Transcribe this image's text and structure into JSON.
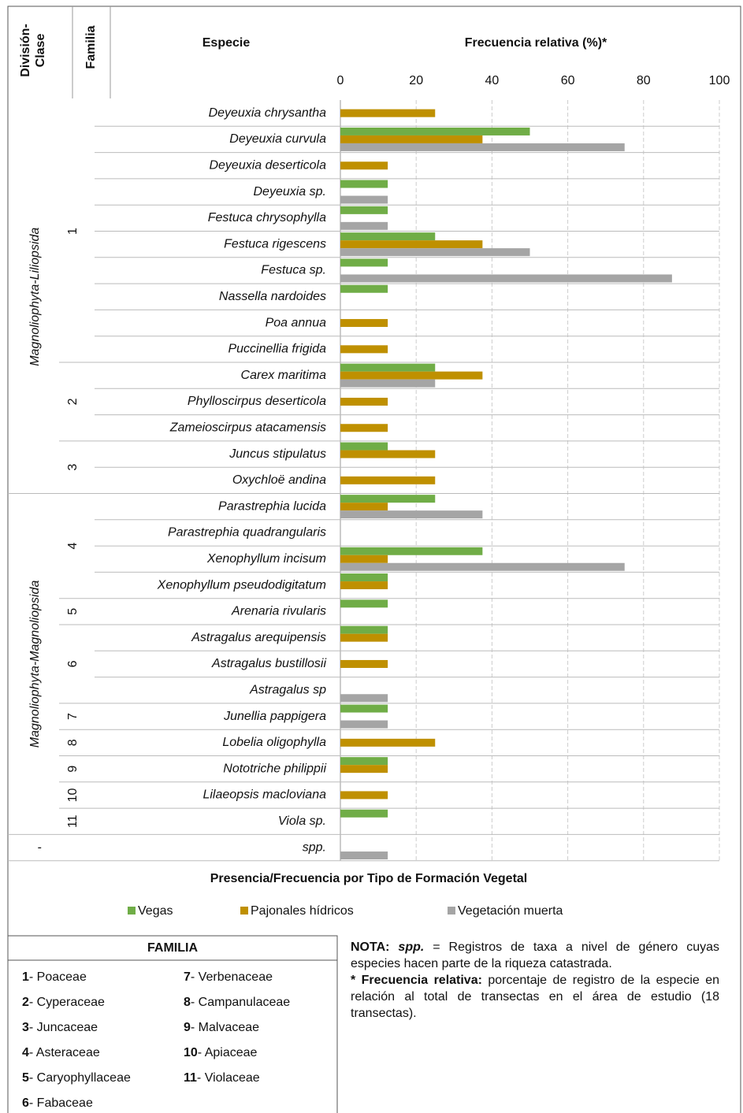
{
  "chart_data": {
    "type": "bar",
    "orientation": "horizontal",
    "headers": {
      "division": [
        "División-",
        "Clase"
      ],
      "familia": "Familia",
      "species": "Especie"
    },
    "title": "Frecuencia relativa (%)*",
    "xlabel": "Presencia/Frecuencia  por Tipo de Formación Vegetal",
    "xlim": [
      0,
      100
    ],
    "xticks": [
      0,
      20,
      40,
      60,
      80,
      100
    ],
    "grid": true,
    "divisions": [
      {
        "label": "Magnoliophyta-Liliopsida",
        "families": [
          {
            "label": "1",
            "species": [
              "Deyeuxia chrysantha",
              "Deyeuxia curvula",
              "Deyeuxia deserticola",
              "Deyeuxia sp.",
              "Festuca chrysophylla",
              "Festuca rigescens",
              "Festuca sp.",
              "Nassella nardoides",
              "Poa annua",
              "Puccinellia frigida"
            ]
          },
          {
            "label": "2",
            "species": [
              "Carex maritima",
              "Phylloscirpus deserticola",
              "Zameioscirpus atacamensis"
            ]
          },
          {
            "label": "3",
            "species": [
              "Juncus stipulatus",
              "Oxychloë andina"
            ]
          }
        ]
      },
      {
        "label": "Magnoliophyta-Magnoliopsida",
        "families": [
          {
            "label": "4",
            "species": [
              "Parastrephia lucida",
              "Parastrephia quadrangularis",
              "Xenophyllum incisum",
              "Xenophyllum pseudodigitatum"
            ]
          },
          {
            "label": "5",
            "species": [
              "Arenaria rivularis"
            ]
          },
          {
            "label": "6",
            "species": [
              "Astragalus arequipensis",
              "Astragalus bustillosii",
              "Astragalus sp"
            ]
          },
          {
            "label": "7",
            "species": [
              "Junellia pappigera"
            ]
          },
          {
            "label": "8",
            "species": [
              "Lobelia oligophylla"
            ]
          },
          {
            "label": "9",
            "species": [
              "Nototriche philippii"
            ]
          },
          {
            "label": "10",
            "species": [
              "Lilaeopsis macloviana"
            ]
          },
          {
            "label": "11",
            "species": [
              "Viola sp."
            ]
          }
        ]
      },
      {
        "label": "-",
        "families": [
          {
            "label": null,
            "species": [
              "spp."
            ]
          }
        ]
      }
    ],
    "series": [
      {
        "name": "Vegas",
        "color": "#70ad47",
        "values": [
          null,
          50,
          null,
          12.5,
          12.5,
          25,
          12.5,
          12.5,
          null,
          null,
          25,
          null,
          null,
          12.5,
          null,
          25,
          null,
          37.5,
          12.5,
          12.5,
          12.5,
          null,
          null,
          12.5,
          null,
          12.5,
          null,
          12.5,
          null
        ]
      },
      {
        "name": "Pajonales hídricos",
        "color": "#bf9000",
        "values": [
          25,
          37.5,
          12.5,
          null,
          null,
          37.5,
          null,
          null,
          12.5,
          12.5,
          37.5,
          12.5,
          12.5,
          25,
          25,
          12.5,
          null,
          12.5,
          12.5,
          null,
          12.5,
          12.5,
          null,
          null,
          25,
          12.5,
          12.5,
          null,
          null
        ]
      },
      {
        "name": "Vegetación muerta",
        "color": "#a5a5a5",
        "values": [
          null,
          75,
          null,
          12.5,
          12.5,
          50,
          87.5,
          null,
          null,
          null,
          25,
          null,
          null,
          null,
          null,
          37.5,
          null,
          75,
          null,
          null,
          null,
          null,
          12.5,
          12.5,
          null,
          null,
          null,
          null,
          12.5
        ]
      }
    ]
  },
  "familia_legend": {
    "title": "FAMILIA",
    "items": [
      {
        "number": "1",
        "name": "- Poaceae"
      },
      {
        "number": "2",
        "name": "- Cyperaceae"
      },
      {
        "number": "3",
        "name": "- Juncaceae"
      },
      {
        "number": "4",
        "name": "- Asteraceae"
      },
      {
        "number": "5",
        "name": "- Caryophyllaceae"
      },
      {
        "number": "6",
        "name": "- Fabaceae"
      },
      {
        "number": "7",
        "name": "- Verbenaceae"
      },
      {
        "number": "8",
        "name": "- Campanulaceae"
      },
      {
        "number": "9",
        "name": "- Malvaceae"
      },
      {
        "number": "10",
        "name": "- Apiaceae"
      },
      {
        "number": "11",
        "name": "- Violaceae"
      }
    ]
  },
  "note": {
    "label": "NOTA:",
    "term": "spp.",
    "text": " = Registros de taxa a nivel de género cuyas especies hacen parte de la riqueza catastrada.",
    "term2": "* Frecuencia relativa:",
    "text2": " porcentaje de registro de la especie en relación al total de transectas en el área de estudio (18 transectas)."
  }
}
